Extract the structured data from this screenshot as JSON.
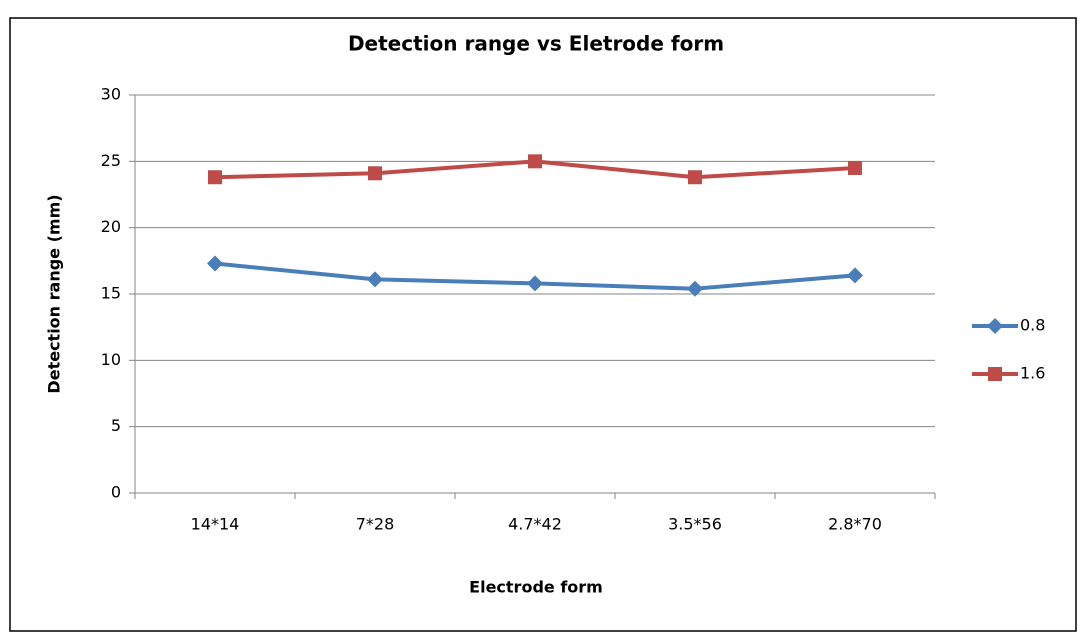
{
  "chart_data": {
    "type": "line",
    "title": "Detection range vs Eletrode form",
    "x_label": "Electrode form",
    "y_label": "Detection range (mm)",
    "categories": [
      "14*14",
      "7*28",
      "4.7*42",
      "3.5*56",
      "2.8*70"
    ],
    "series": [
      {
        "name": "0.8",
        "color": "#4a7ebb",
        "marker": "diamond",
        "values": [
          17.3,
          16.1,
          15.8,
          15.4,
          16.4
        ]
      },
      {
        "name": "1.6",
        "color": "#be4b48",
        "marker": "square",
        "values": [
          23.8,
          24.1,
          25.0,
          23.8,
          24.5
        ]
      }
    ],
    "ylim": [
      0,
      30
    ],
    "yticks": [
      0,
      5,
      10,
      15,
      20,
      25,
      30
    ],
    "grid": true,
    "legend": "right"
  }
}
